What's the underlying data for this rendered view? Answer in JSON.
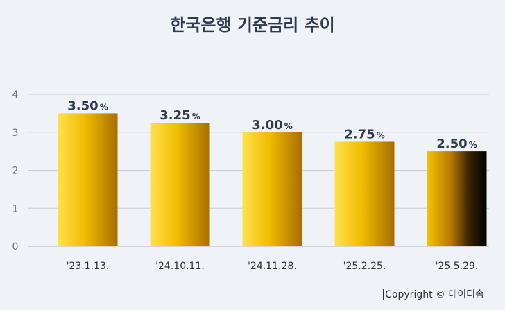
{
  "chart_data": {
    "type": "bar",
    "title": "한국은행 기준금리 추이",
    "categories": [
      "'23.1.13.",
      "'24.10.11.",
      "'24.11.28.",
      "'25.2.25.",
      "'25.5.29."
    ],
    "values": [
      3.5,
      3.25,
      3.0,
      2.75,
      2.5
    ],
    "value_labels": [
      "3.50",
      "3.25",
      "3.00",
      "2.75",
      "2.50"
    ],
    "value_unit": "%",
    "ylim": [
      0,
      4
    ],
    "yticks": [
      0,
      1,
      2,
      3,
      4
    ],
    "grid": true,
    "colors": {
      "bar_light": "#ffe14d",
      "bar_mid": "#f1bd00",
      "bar_dark": "#a86d00",
      "last_bar_dark": "#000000",
      "grid": "#c8ccd3"
    }
  },
  "footer": {
    "copyright": "Copyright © 데이터솜"
  }
}
